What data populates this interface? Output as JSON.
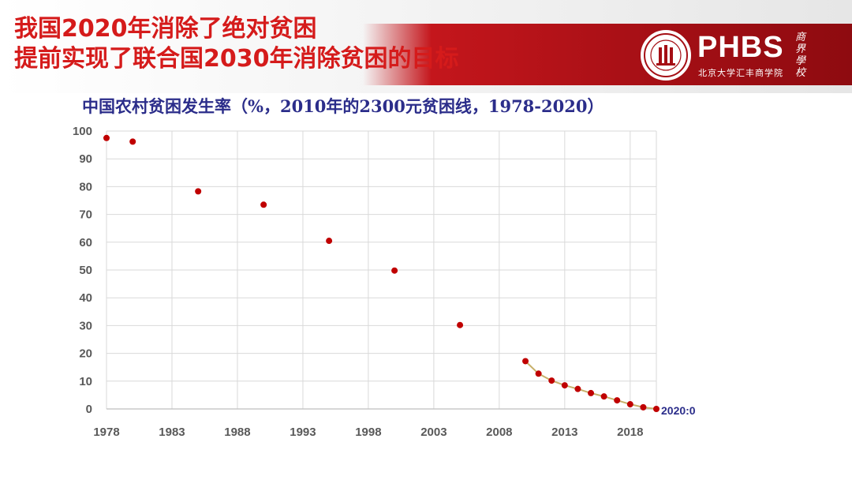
{
  "slide": {
    "title_line1": "我国2020年消除了绝对贫困",
    "title_line2": "提前实现了联合国2030年消除贫困的目标"
  },
  "logo": {
    "brand": "PHBS",
    "subtitle": "北京大学汇丰商学院",
    "calligraphy": "商界學校"
  },
  "colors": {
    "title_red": "#d51b1b",
    "band_red": "#b31217",
    "marker": "#c00000",
    "trend_line": "#c7b06a",
    "chart_title": "#2b2d8a",
    "axis_text": "#595959",
    "grid": "#d9d9d9"
  },
  "chart_data": {
    "type": "scatter",
    "title": "中国农村贫困发生率（%，2010年的2300元贫困线，1978-2020）",
    "xlabel": "",
    "ylabel": "",
    "xlim": [
      1978,
      2020
    ],
    "ylim": [
      0,
      100
    ],
    "x_ticks": [
      1978,
      1983,
      1988,
      1993,
      1998,
      2003,
      2008,
      2013,
      2018
    ],
    "y_ticks": [
      0,
      10,
      20,
      30,
      40,
      50,
      60,
      70,
      80,
      90,
      100
    ],
    "grid": "horizontal and vertical",
    "series": [
      {
        "name": "贫困发生率",
        "points": [
          {
            "x": 1978,
            "y": 97.5
          },
          {
            "x": 1980,
            "y": 96.2
          },
          {
            "x": 1985,
            "y": 78.3
          },
          {
            "x": 1990,
            "y": 73.5
          },
          {
            "x": 1995,
            "y": 60.5
          },
          {
            "x": 2000,
            "y": 49.8
          },
          {
            "x": 2005,
            "y": 30.2
          },
          {
            "x": 2010,
            "y": 17.2
          },
          {
            "x": 2011,
            "y": 12.7
          },
          {
            "x": 2012,
            "y": 10.2
          },
          {
            "x": 2013,
            "y": 8.5
          },
          {
            "x": 2014,
            "y": 7.2
          },
          {
            "x": 2015,
            "y": 5.7
          },
          {
            "x": 2016,
            "y": 4.5
          },
          {
            "x": 2017,
            "y": 3.1
          },
          {
            "x": 2018,
            "y": 1.7
          },
          {
            "x": 2019,
            "y": 0.6
          },
          {
            "x": 2020,
            "y": 0
          }
        ]
      }
    ],
    "trend_line": {
      "from_x": 2010,
      "to_x": 2020
    },
    "annotations": [
      {
        "text": "2020:0",
        "x": 2020,
        "y": 0
      }
    ]
  }
}
